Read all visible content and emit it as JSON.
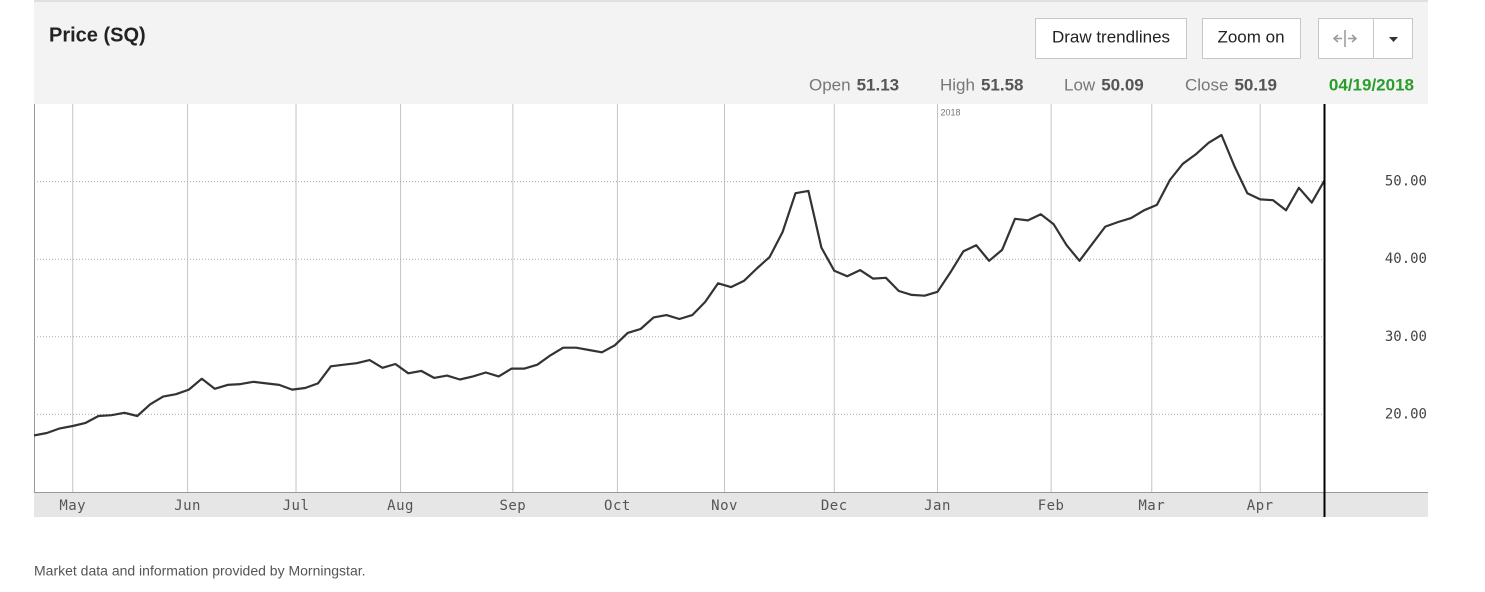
{
  "chart_data": {
    "type": "line",
    "title": "Price (SQ)",
    "x": [
      0,
      1,
      2,
      3,
      4,
      5,
      6,
      7,
      8,
      9,
      10,
      11,
      12,
      13,
      14,
      15,
      16,
      17,
      18,
      19,
      20,
      21,
      22,
      23,
      24,
      25,
      26,
      27,
      28,
      29,
      30,
      31,
      32,
      33,
      34,
      35,
      36,
      37,
      38,
      39,
      40,
      41,
      42,
      43,
      44,
      45,
      46,
      47,
      48,
      49,
      50,
      51,
      52,
      53,
      54,
      55,
      56,
      57,
      58,
      59,
      60,
      61,
      62,
      63,
      64,
      65,
      66,
      67,
      68,
      69,
      70,
      71,
      72,
      73,
      74,
      75,
      76,
      77,
      78,
      79,
      80,
      81,
      82,
      83,
      84,
      85,
      86,
      87,
      88,
      89,
      90,
      91,
      92,
      93,
      94,
      95,
      96,
      97,
      98,
      99,
      100
    ],
    "series": [
      {
        "name": "SQ",
        "color": "#333333",
        "values": [
          17.3,
          17.6,
          18.2,
          18.5,
          18.9,
          19.8,
          19.9,
          20.2,
          19.8,
          21.3,
          22.3,
          22.6,
          23.2,
          24.6,
          23.3,
          23.8,
          23.9,
          24.2,
          24.0,
          23.8,
          23.2,
          23.4,
          24.0,
          26.2,
          26.4,
          26.6,
          27.0,
          26.0,
          26.5,
          25.3,
          25.6,
          24.7,
          25.0,
          24.5,
          24.9,
          25.4,
          24.9,
          25.9,
          25.9,
          26.4,
          27.6,
          28.6,
          28.6,
          28.3,
          28.0,
          28.9,
          30.5,
          31.0,
          32.5,
          32.8,
          32.3,
          32.8,
          34.5,
          36.9,
          36.4,
          37.2,
          38.8,
          40.3,
          43.5,
          48.5,
          48.8,
          41.5,
          38.5,
          37.8,
          38.6,
          37.5,
          37.6,
          35.9,
          35.4,
          35.3,
          35.8,
          38.3,
          41.0,
          41.8,
          39.8,
          41.2,
          45.2,
          45.0,
          45.8,
          44.5,
          41.8,
          39.8,
          42.0,
          44.2,
          44.8,
          45.3,
          46.3,
          47.0,
          50.2,
          52.3,
          53.5,
          55.0,
          56.0,
          52.0,
          48.5,
          47.7,
          47.6,
          46.3,
          49.2,
          47.3,
          50.2
        ]
      }
    ],
    "xlim": [
      0,
      108
    ],
    "xticks": [
      {
        "value": 3.0,
        "label": "May"
      },
      {
        "value": 11.9,
        "label": "Jun"
      },
      {
        "value": 20.3,
        "label": "Jul"
      },
      {
        "value": 28.4,
        "label": "Aug"
      },
      {
        "value": 37.1,
        "label": "Sep"
      },
      {
        "value": 45.2,
        "label": "Oct"
      },
      {
        "value": 53.5,
        "label": "Nov"
      },
      {
        "value": 62.0,
        "label": "Dec"
      },
      {
        "value": 70.0,
        "label": "Jan"
      },
      {
        "value": 78.8,
        "label": "Feb"
      },
      {
        "value": 86.6,
        "label": "Mar"
      },
      {
        "value": 95.0,
        "label": "Apr"
      }
    ],
    "ylim": [
      10,
      60
    ],
    "yticks": [
      {
        "value": 20,
        "label": "20.00"
      },
      {
        "value": 30,
        "label": "30.00"
      },
      {
        "value": 40,
        "label": "40.00"
      },
      {
        "value": 50,
        "label": "50.00"
      }
    ],
    "annotations": [
      {
        "x": 70.0,
        "text": "2018"
      }
    ],
    "grid": true
  },
  "buttons": [
    "Draw trendlines",
    "Zoom on"
  ],
  "quote": [
    {
      "label": "Open",
      "value": 51.13
    },
    {
      "label": "High",
      "value": 51.58
    },
    {
      "label": "Low",
      "value": 50.09
    },
    {
      "label": "Close",
      "value": 50.19
    }
  ],
  "date": "04/19/2018",
  "footer": "Market data and information provided by Morningstar."
}
